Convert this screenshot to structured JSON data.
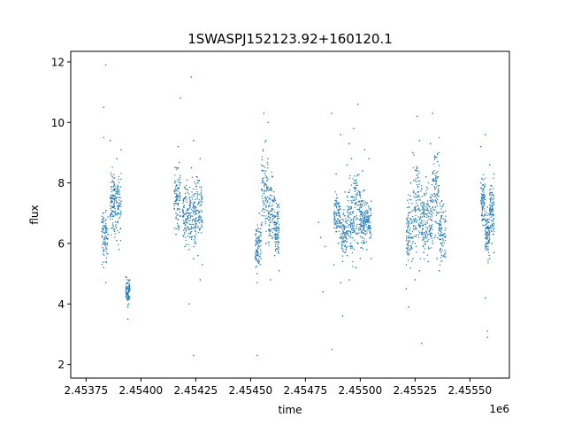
{
  "chart_data": {
    "type": "scatter",
    "title": "1SWASPJ152123.92+160120.1",
    "xlabel": "time",
    "ylabel": "flux",
    "x_offset_label": "1e6",
    "xlim": [
      2.45368,
      2.45568
    ],
    "ylim": [
      1.55,
      12.35
    ],
    "xticks": [
      2.45375,
      2.454,
      2.45425,
      2.4545,
      2.45475,
      2.455,
      2.45525,
      2.4555
    ],
    "xtick_labels": [
      "2.45375",
      "2.45400",
      "2.45425",
      "2.45450",
      "2.45475",
      "2.45500",
      "2.45525",
      "2.45550"
    ],
    "yticks": [
      2,
      4,
      6,
      8,
      10,
      12
    ],
    "ytick_labels": [
      "2",
      "4",
      "6",
      "8",
      "10",
      "12"
    ],
    "grid": false,
    "legend": false,
    "marker_color": "#1f77b4",
    "series": [
      {
        "values_note": "",
        "points": [
          [
            2.45383,
            5.2
          ],
          [
            2.45383,
            6.0
          ],
          [
            2.45383,
            6.8
          ],
          [
            2.45383,
            9.5
          ],
          [
            2.45383,
            10.5
          ],
          [
            2.45384,
            11.9
          ],
          [
            2.45384,
            4.7
          ],
          [
            2.45385,
            6.3
          ],
          [
            2.45386,
            7.5
          ],
          [
            2.45386,
            9.4
          ],
          [
            2.45387,
            8.2
          ],
          [
            2.45387,
            6.9
          ],
          [
            2.45388,
            6.4
          ],
          [
            2.45388,
            7.8
          ],
          [
            2.45389,
            8.8
          ],
          [
            2.45389,
            6.1
          ],
          [
            2.4539,
            7.0
          ],
          [
            2.4539,
            5.8
          ],
          [
            2.45391,
            9.1
          ],
          [
            2.45391,
            7.4
          ],
          [
            2.45393,
            4.9
          ],
          [
            2.45394,
            4.5
          ],
          [
            2.45394,
            3.5
          ],
          [
            2.45394,
            3.9
          ],
          [
            2.45416,
            6.3
          ],
          [
            2.45416,
            7.0
          ],
          [
            2.45416,
            7.9
          ],
          [
            2.45417,
            8.5
          ],
          [
            2.45417,
            9.2
          ],
          [
            2.45417,
            6.6
          ],
          [
            2.45417,
            7.3
          ],
          [
            2.45418,
            6.9
          ],
          [
            2.45418,
            8.0
          ],
          [
            2.45418,
            10.8
          ],
          [
            2.4542,
            5.9
          ],
          [
            2.4542,
            7.5
          ],
          [
            2.45421,
            6.5
          ],
          [
            2.45421,
            8.1
          ],
          [
            2.45422,
            5.8
          ],
          [
            2.45422,
            7.0
          ],
          [
            2.45422,
            4.0
          ],
          [
            2.45423,
            6.2
          ],
          [
            2.45423,
            8.5
          ],
          [
            2.45423,
            11.5
          ],
          [
            2.45424,
            6.8
          ],
          [
            2.45424,
            5.5
          ],
          [
            2.45424,
            9.4
          ],
          [
            2.45424,
            2.3
          ],
          [
            2.45425,
            7.2
          ],
          [
            2.45425,
            6.0
          ],
          [
            2.45426,
            8.0
          ],
          [
            2.45426,
            5.6
          ],
          [
            2.45427,
            6.5
          ],
          [
            2.45427,
            4.8
          ],
          [
            2.45427,
            8.8
          ],
          [
            2.45428,
            6.7
          ],
          [
            2.45428,
            5.3
          ],
          [
            2.45453,
            5.0
          ],
          [
            2.45453,
            5.6
          ],
          [
            2.45453,
            4.7
          ],
          [
            2.45453,
            2.3
          ],
          [
            2.45454,
            6.2
          ],
          [
            2.45454,
            7.0
          ],
          [
            2.45454,
            5.4
          ],
          [
            2.45455,
            7.8
          ],
          [
            2.45455,
            6.6
          ],
          [
            2.45456,
            8.4
          ],
          [
            2.45456,
            10.3
          ],
          [
            2.45457,
            9.4
          ],
          [
            2.45457,
            7.2
          ],
          [
            2.45457,
            6.0
          ],
          [
            2.45458,
            8.8
          ],
          [
            2.45458,
            10.0
          ],
          [
            2.45459,
            7.6
          ],
          [
            2.45459,
            6.4
          ],
          [
            2.45459,
            4.8
          ],
          [
            2.4546,
            8.2
          ],
          [
            2.4546,
            6.9
          ],
          [
            2.45461,
            7.5
          ],
          [
            2.45461,
            5.6
          ],
          [
            2.45462,
            7.0
          ],
          [
            2.45462,
            6.3
          ],
          [
            2.45463,
            7.2
          ],
          [
            2.45463,
            5.1
          ],
          [
            2.45481,
            6.7
          ],
          [
            2.45482,
            6.2
          ],
          [
            2.45483,
            4.4
          ],
          [
            2.45484,
            5.9
          ],
          [
            2.45487,
            2.5
          ],
          [
            2.45487,
            10.3
          ],
          [
            2.45488,
            7.0
          ],
          [
            2.45488,
            5.3
          ],
          [
            2.45489,
            6.5
          ],
          [
            2.45489,
            8.3
          ],
          [
            2.4549,
            7.3
          ],
          [
            2.4549,
            6.0
          ],
          [
            2.45491,
            4.7
          ],
          [
            2.45491,
            9.6
          ],
          [
            2.45492,
            6.8
          ],
          [
            2.45492,
            5.4
          ],
          [
            2.45492,
            3.6
          ],
          [
            2.45493,
            6.1
          ],
          [
            2.45493,
            7.7
          ],
          [
            2.45494,
            5.6
          ],
          [
            2.45494,
            8.6
          ],
          [
            2.45495,
            6.4
          ],
          [
            2.45495,
            9.3
          ],
          [
            2.45495,
            4.8
          ],
          [
            2.45496,
            7.2
          ],
          [
            2.45496,
            8.8
          ],
          [
            2.45496,
            5.9
          ],
          [
            2.45497,
            9.8
          ],
          [
            2.45497,
            6.7
          ],
          [
            2.45498,
            5.2
          ],
          [
            2.45498,
            8.1
          ],
          [
            2.45499,
            10.6
          ],
          [
            2.45499,
            6.0
          ],
          [
            2.455,
            7.6
          ],
          [
            2.455,
            5.5
          ],
          [
            2.45501,
            8.4
          ],
          [
            2.45501,
            6.2
          ],
          [
            2.45502,
            9.1
          ],
          [
            2.45502,
            7.0
          ],
          [
            2.45503,
            5.8
          ],
          [
            2.45504,
            8.8
          ],
          [
            2.45504,
            6.5
          ],
          [
            2.45505,
            7.4
          ],
          [
            2.45505,
            5.5
          ],
          [
            2.45521,
            4.5
          ],
          [
            2.45521,
            5.3
          ],
          [
            2.45522,
            6.1
          ],
          [
            2.45522,
            7.0
          ],
          [
            2.45522,
            3.9
          ],
          [
            2.45523,
            6.8
          ],
          [
            2.45523,
            8.0
          ],
          [
            2.45524,
            5.5
          ],
          [
            2.45524,
            9.0
          ],
          [
            2.45525,
            7.2
          ],
          [
            2.45525,
            6.0
          ],
          [
            2.45525,
            4.8
          ],
          [
            2.45526,
            8.5
          ],
          [
            2.45526,
            10.2
          ],
          [
            2.45527,
            6.6
          ],
          [
            2.45527,
            9.4
          ],
          [
            2.45527,
            5.1
          ],
          [
            2.45528,
            7.8
          ],
          [
            2.45528,
            6.3
          ],
          [
            2.45528,
            2.7
          ],
          [
            2.45529,
            7.0
          ],
          [
            2.45529,
            5.7
          ],
          [
            2.4553,
            8.2
          ],
          [
            2.4553,
            6.4
          ],
          [
            2.45531,
            6.9
          ],
          [
            2.45531,
            5.4
          ],
          [
            2.45532,
            7.5
          ],
          [
            2.45532,
            9.3
          ],
          [
            2.45533,
            8.3
          ],
          [
            2.45533,
            6.0
          ],
          [
            2.45533,
            10.3
          ],
          [
            2.45534,
            7.1
          ],
          [
            2.45534,
            8.9
          ],
          [
            2.45534,
            6.2
          ],
          [
            2.45535,
            7.6
          ],
          [
            2.45535,
            5.5
          ],
          [
            2.45536,
            6.6
          ],
          [
            2.45536,
            5.1
          ],
          [
            2.45537,
            6.9
          ],
          [
            2.45537,
            6.0
          ],
          [
            2.45538,
            7.3
          ],
          [
            2.45538,
            5.6
          ],
          [
            2.45539,
            6.5
          ],
          [
            2.45555,
            9.2
          ],
          [
            2.45555,
            8.0
          ],
          [
            2.45556,
            7.4
          ],
          [
            2.45556,
            6.6
          ],
          [
            2.45557,
            9.6
          ],
          [
            2.45557,
            5.9
          ],
          [
            2.45557,
            4.2
          ],
          [
            2.45558,
            7.2
          ],
          [
            2.45558,
            3.1
          ],
          [
            2.45558,
            2.9
          ],
          [
            2.45559,
            8.6
          ],
          [
            2.45559,
            5.5
          ],
          [
            2.4556,
            6.0
          ],
          [
            2.4556,
            7.9
          ],
          [
            2.45561,
            6.5
          ],
          [
            2.45561,
            8.3
          ],
          [
            2.45561,
            5.7
          ]
        ]
      }
    ],
    "dense_bands": [
      {
        "x": [
          2.45382,
          2.45385
        ],
        "ymin": 5.0,
        "ymax": 7.4
      },
      {
        "x": [
          2.45386,
          2.45388
        ],
        "ymin": 6.0,
        "ymax": 8.8
      },
      {
        "x": [
          2.45388,
          2.45391
        ],
        "ymin": 5.7,
        "ymax": 8.9
      },
      {
        "x": [
          2.45393,
          2.45395
        ],
        "ymin": 3.9,
        "ymax": 5.0
      },
      {
        "x": [
          2.45415,
          2.45418
        ],
        "ymin": 6.1,
        "ymax": 9.0
      },
      {
        "x": [
          2.45419,
          2.45422
        ],
        "ymin": 5.6,
        "ymax": 8.2
      },
      {
        "x": [
          2.45422,
          2.45425
        ],
        "ymin": 5.3,
        "ymax": 8.4
      },
      {
        "x": [
          2.45425,
          2.45428
        ],
        "ymin": 5.5,
        "ymax": 8.6
      },
      {
        "x": [
          2.45452,
          2.45455
        ],
        "ymin": 4.8,
        "ymax": 7.0
      },
      {
        "x": [
          2.45455,
          2.45458
        ],
        "ymin": 5.8,
        "ymax": 9.6
      },
      {
        "x": [
          2.45458,
          2.45461
        ],
        "ymin": 5.5,
        "ymax": 8.6
      },
      {
        "x": [
          2.45461,
          2.45463
        ],
        "ymin": 5.2,
        "ymax": 7.8
      },
      {
        "x": [
          2.45488,
          2.45491
        ],
        "ymin": 5.9,
        "ymax": 8.0
      },
      {
        "x": [
          2.45491,
          2.45494
        ],
        "ymin": 5.2,
        "ymax": 7.4
      },
      {
        "x": [
          2.45494,
          2.45497
        ],
        "ymin": 5.0,
        "ymax": 8.6
      },
      {
        "x": [
          2.45497,
          2.455
        ],
        "ymin": 5.3,
        "ymax": 9.2
      },
      {
        "x": [
          2.455,
          2.45502
        ],
        "ymin": 5.5,
        "ymax": 8.0
      },
      {
        "x": [
          2.45502,
          2.45505
        ],
        "ymin": 5.8,
        "ymax": 7.6
      },
      {
        "x": [
          2.45521,
          2.45524
        ],
        "ymin": 5.0,
        "ymax": 8.0
      },
      {
        "x": [
          2.45524,
          2.45527
        ],
        "ymin": 5.2,
        "ymax": 9.6
      },
      {
        "x": [
          2.45527,
          2.4553
        ],
        "ymin": 5.0,
        "ymax": 8.4
      },
      {
        "x": [
          2.4553,
          2.45533
        ],
        "ymin": 5.3,
        "ymax": 8.2
      },
      {
        "x": [
          2.45533,
          2.45536
        ],
        "ymin": 5.3,
        "ymax": 10.0
      },
      {
        "x": [
          2.45536,
          2.45539
        ],
        "ymin": 5.0,
        "ymax": 7.8
      },
      {
        "x": [
          2.45555,
          2.45557
        ],
        "ymin": 6.0,
        "ymax": 8.8
      },
      {
        "x": [
          2.45557,
          2.45559
        ],
        "ymin": 5.2,
        "ymax": 7.4
      },
      {
        "x": [
          2.45559,
          2.45561
        ],
        "ymin": 5.8,
        "ymax": 8.4
      }
    ]
  }
}
